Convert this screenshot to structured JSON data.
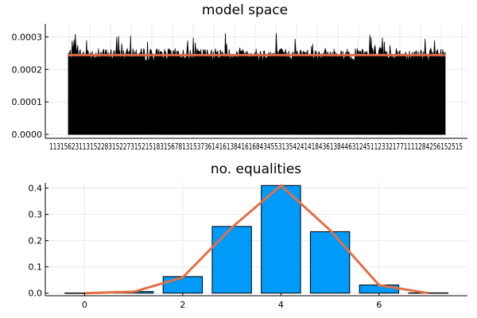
{
  "chart_data": [
    {
      "type": "bar",
      "title": "model space",
      "xlabel": "",
      "ylabel": "",
      "ylim": [
        0,
        0.00034
      ],
      "grid": true,
      "legend": "none",
      "y_ticks": [
        "0.0000",
        "0.0001",
        "0.0002",
        "0.0003"
      ],
      "y_tick_values": [
        0,
        0.0001,
        0.0002,
        0.0003
      ],
      "x_tick_labels_overlapping": "1131562311315228315227315215183156781315373614161384161684345531354241418436138446312451123321771111284256152515",
      "bars": {
        "count": 4096,
        "typical_value": 0.000245,
        "range": [
          0.00022,
          0.00033
        ],
        "color": "#000000"
      },
      "series": [
        {
          "kind": "bars",
          "color": "#000000"
        },
        {
          "kind": "line",
          "values": [
            0.000244,
            0.000244
          ],
          "color": "#e26f46"
        }
      ]
    },
    {
      "type": "bar",
      "title": "no. equalities",
      "xlabel": "",
      "ylabel": "",
      "xlim": [
        -0.8,
        7.8
      ],
      "ylim": [
        -0.01,
        0.42
      ],
      "grid": true,
      "legend": "none",
      "x_ticks": [
        "0",
        "2",
        "4",
        "6"
      ],
      "x_tick_values": [
        0,
        2,
        4,
        6
      ],
      "y_ticks": [
        "0.0",
        "0.1",
        "0.2",
        "0.3",
        "0.4"
      ],
      "y_tick_values": [
        0,
        0.1,
        0.2,
        0.3,
        0.4
      ],
      "categories": [
        0,
        1,
        2,
        3,
        4,
        5,
        6,
        7
      ],
      "series": [
        {
          "kind": "bars",
          "values": [
            0.0005,
            0.006,
            0.063,
            0.254,
            0.41,
            0.234,
            0.031,
            0.001
          ],
          "color": "#009af9"
        },
        {
          "kind": "line",
          "values": [
            0.0,
            0.005,
            0.06,
            0.25,
            0.41,
            0.24,
            0.03,
            0.0
          ],
          "color": "#e26f46"
        }
      ]
    }
  ]
}
